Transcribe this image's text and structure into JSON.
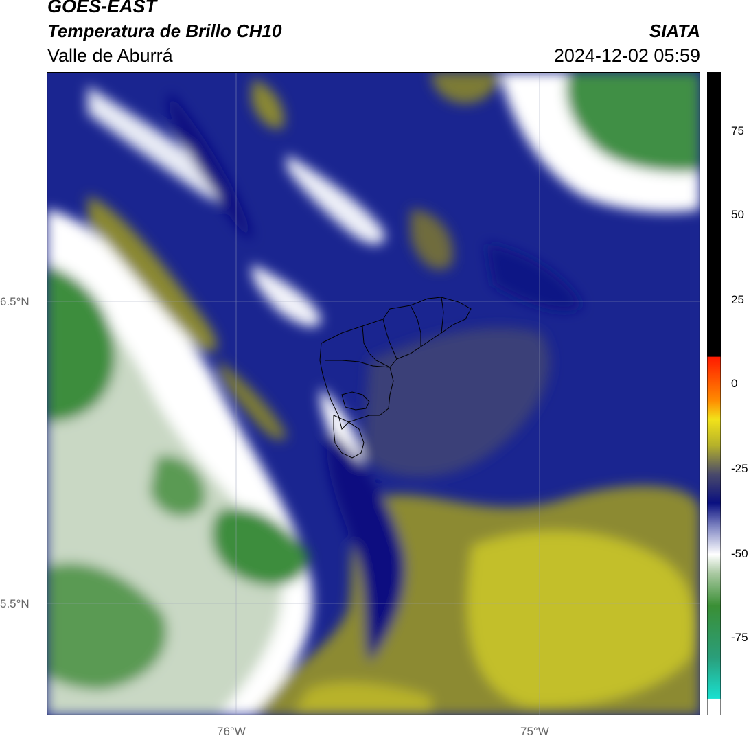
{
  "header": {
    "satellite": "GOES-EAST",
    "product": "Temperatura de Brillo CH10",
    "region": "Valle de Aburrá",
    "source": "SIATA",
    "datetime": "2024-12-02 05:59"
  },
  "map": {
    "lat_labels": [
      "6.5°N",
      "5.5°N"
    ],
    "lon_labels": [
      "76°W",
      "75°W"
    ]
  },
  "colorbar": {
    "ticks": [
      "75",
      "50",
      "25",
      "0",
      "-25",
      "-50",
      "-75"
    ],
    "range": [
      -95,
      92
    ],
    "colors": {
      "cyan": "#19e0d0",
      "green": "#3a8f35",
      "white": "#ffffff",
      "navy": "#0a1080",
      "olive": "#b6b22a",
      "yellow": "#f2e21a",
      "orange": "#ff8a00",
      "red": "#ff1a00",
      "black": "#000000"
    }
  }
}
